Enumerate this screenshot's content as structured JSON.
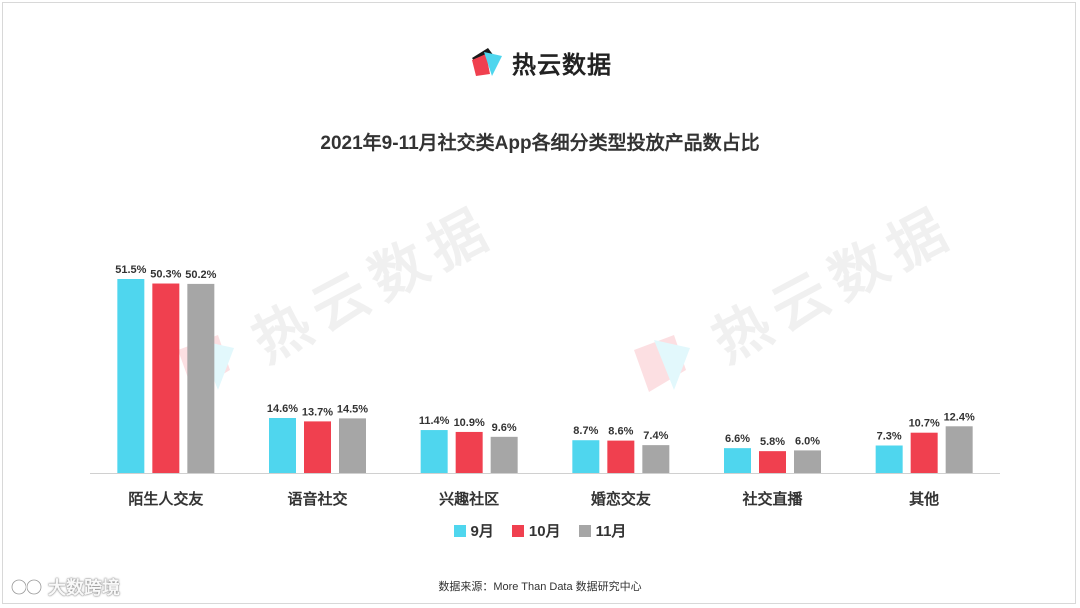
{
  "brand": {
    "name": "热云数据",
    "logo_icon": "reyun-logo-icon"
  },
  "watermark": {
    "text": "热云数据"
  },
  "colors": {
    "sep": "#4fd6ee",
    "oct": "#f0404f",
    "nov": "#a6a6a6"
  },
  "chart_data": {
    "type": "bar",
    "title": "2021年9-11月社交类App各细分类型投放产品数占比",
    "categories": [
      "陌生人交友",
      "语音社交",
      "兴趣社区",
      "婚恋交友",
      "社交直播",
      "其他"
    ],
    "series": [
      {
        "name": "9月",
        "values": [
          51.5,
          14.6,
          11.4,
          8.7,
          6.6,
          7.3
        ],
        "labels": [
          "51.5%",
          "14.6%",
          "11.4%",
          "8.7%",
          "6.6%",
          "7.3%"
        ]
      },
      {
        "name": "10月",
        "values": [
          50.3,
          13.7,
          10.9,
          8.6,
          5.8,
          10.7
        ],
        "labels": [
          "50.3%",
          "13.7%",
          "10.9%",
          "8.6%",
          "5.8%",
          "10.7%"
        ]
      },
      {
        "name": "11月",
        "values": [
          50.2,
          14.5,
          9.6,
          7.4,
          6.0,
          12.4
        ],
        "labels": [
          "50.2%",
          "14.5%",
          "9.6%",
          "7.4%",
          "6.0%",
          "12.4%"
        ]
      }
    ],
    "xlabel": "",
    "ylabel": "",
    "ylim": [
      0,
      51.5
    ],
    "grid": false,
    "legend": "bottom-center"
  },
  "source": "数据来源：More Than Data 数据研究中心",
  "corner_watermark": {
    "text": "大数跨境",
    "icon": "dashukuajing-logo-icon"
  }
}
